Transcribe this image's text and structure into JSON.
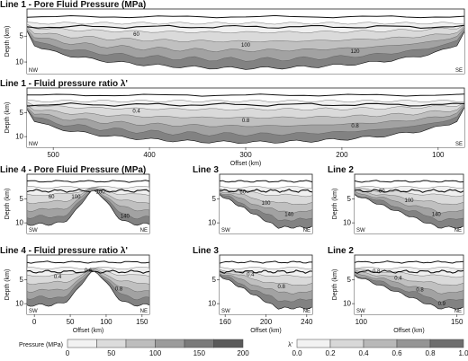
{
  "panels": [
    {
      "title": "Line 1 - Pore Fluid Pressure (MPa)",
      "y_label": "Depth (km)",
      "y_ticks": [
        "5",
        "10"
      ],
      "left": "NW",
      "right": "SE",
      "contours": [
        "60",
        "100",
        "120"
      ]
    },
    {
      "title": "Line 1 - Fluid pressure ratio λ'",
      "y_label": "Depth (km)",
      "y_ticks": [
        "5",
        "10"
      ],
      "left": "NW",
      "right": "SE",
      "contours": [
        "0.4",
        "0.8",
        "0.8"
      ],
      "x_ticks": [
        "500",
        "400",
        "300",
        "200",
        "100"
      ],
      "x_label": "Offset (km)"
    },
    {
      "title": "Line 4 - Pore Fluid Pressure (MPa)",
      "y_label": "Depth (km)",
      "y_ticks": [
        "5",
        "10"
      ],
      "left": "SW",
      "right": "NE",
      "contours": [
        "60",
        "100",
        "100",
        "140"
      ]
    },
    {
      "title": "Line 3",
      "y_ticks": [
        "5",
        "10"
      ],
      "left": "SW",
      "right": "NE",
      "contours": [
        "60",
        "100",
        "140"
      ]
    },
    {
      "title": "Line 2",
      "y_label": "Depth (km)",
      "y_ticks": [
        "5",
        "10"
      ],
      "left": "SW",
      "right": "NE",
      "contours": [
        "60",
        "100",
        "140"
      ]
    },
    {
      "title": "Line 4 - Fluid pressure ratio λ'",
      "y_label": "Depth (km)",
      "y_ticks": [
        "5",
        "10"
      ],
      "left": "SW",
      "right": "NE",
      "contours": [
        "0.4",
        "0.6",
        "0.8"
      ],
      "x_ticks": [
        "0",
        "50",
        "100",
        "150"
      ],
      "x_label": "Offset (km)"
    },
    {
      "title": "Line 3",
      "y_ticks": [
        "5",
        "10"
      ],
      "left": "SW",
      "right": "NE",
      "contours": [
        "0.4",
        "0.8"
      ],
      "x_ticks": [
        "160",
        "200",
        "240"
      ],
      "x_label": "Offset (km)"
    },
    {
      "title": "Line 2",
      "y_label": "Depth (km)",
      "y_ticks": [
        "5",
        "10"
      ],
      "left": "SW",
      "right": "NE",
      "contours": [
        "0.8",
        "0.4",
        "0.8",
        "0.9"
      ],
      "x_ticks": [
        "100",
        "150"
      ],
      "x_label": "Offset (km)"
    }
  ],
  "legend_pressure": {
    "label": "Pressure (MPa)",
    "ticks": [
      "0",
      "50",
      "100",
      "150",
      "200"
    ],
    "colors": [
      "#f2f2f2",
      "#dcdcdc",
      "#bdbdbd",
      "#9b9b9b",
      "#7a7a7a",
      "#5a5a5a"
    ]
  },
  "legend_lambda": {
    "label": "λ'",
    "ticks": [
      "0.0",
      "0.2",
      "0.4",
      "0.6",
      "0.8",
      "1.0"
    ],
    "colors": [
      "#f2f2f2",
      "#d8d8d8",
      "#b8b8b8",
      "#959595",
      "#6e6e6e"
    ]
  }
}
